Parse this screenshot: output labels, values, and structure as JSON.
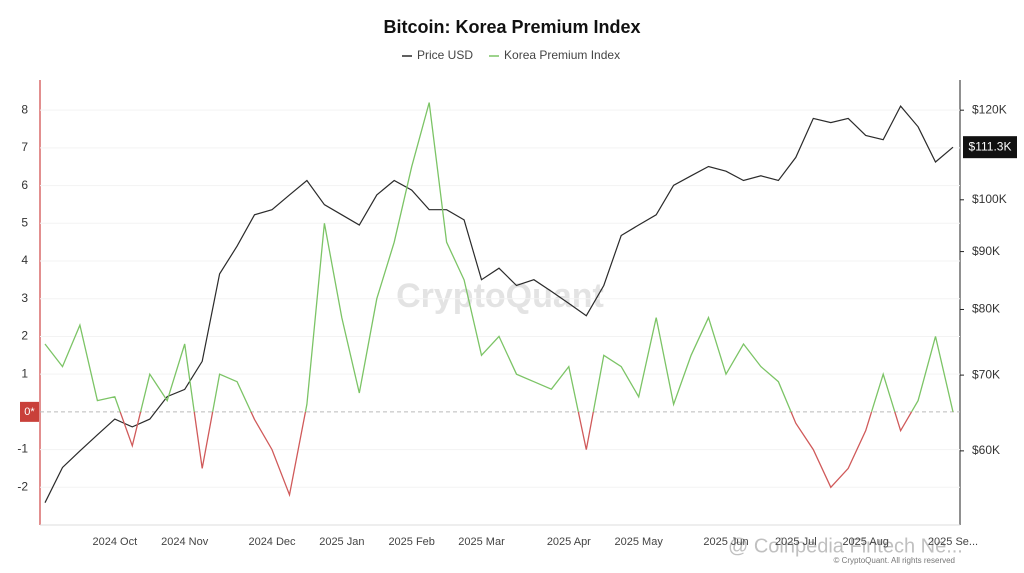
{
  "chart_data": {
    "type": "line",
    "title": "Bitcoin: Korea Premium Index",
    "categories": [
      null,
      null,
      null,
      null,
      "2024 Oct",
      null,
      null,
      null,
      "2024 Nov",
      null,
      null,
      null,
      null,
      "2024 Dec",
      null,
      null,
      null,
      "2025 Jan",
      null,
      null,
      null,
      "2025 Feb",
      null,
      null,
      null,
      "2025 Mar",
      null,
      null,
      null,
      null,
      "2025 Apr",
      null,
      null,
      null,
      "2025 May",
      null,
      null,
      null,
      null,
      "2025 Jun",
      null,
      null,
      null,
      "2025 Jul",
      null,
      null,
      null,
      "2025 Aug",
      null,
      null,
      null,
      null,
      "2025 Se..."
    ],
    "series": [
      {
        "name": "Price USD",
        "color": "#2b2b2b",
        "axis": "y2",
        "values": [
          54000,
          58000,
          60000,
          62000,
          64000,
          63000,
          64000,
          67000,
          68000,
          72000,
          86000,
          91000,
          97000,
          98000,
          101000,
          104000,
          99000,
          97000,
          95000,
          101000,
          104000,
          102000,
          98000,
          98000,
          96000,
          85000,
          87000,
          84000,
          85000,
          83000,
          81000,
          79000,
          84000,
          93000,
          95000,
          97000,
          103000,
          105000,
          107000,
          106000,
          104000,
          105000,
          104000,
          109000,
          118000,
          117000,
          118000,
          114000,
          113000,
          121000,
          116000,
          108000,
          111300
        ]
      },
      {
        "name": "Korea Premium Index",
        "color": "#7cc466",
        "negative_color": "#d05a5a",
        "values": [
          1.8,
          1.2,
          2.3,
          0.3,
          0.4,
          -0.9,
          1.0,
          0.3,
          1.8,
          -1.5,
          1.0,
          0.8,
          -0.2,
          -1.0,
          -2.2,
          0.2,
          5.0,
          2.5,
          0.5,
          3.0,
          4.5,
          6.5,
          8.2,
          4.5,
          3.5,
          1.5,
          2.0,
          1.0,
          0.8,
          0.6,
          1.2,
          -1.0,
          1.5,
          1.2,
          0.4,
          2.5,
          0.2,
          1.5,
          2.5,
          1.0,
          1.8,
          1.2,
          0.8,
          -0.3,
          -1.0,
          -2.0,
          -1.5,
          -0.5,
          1.0,
          -0.5,
          0.3,
          2.0,
          0.0
        ]
      }
    ],
    "ylim": [
      -3,
      8.8
    ],
    "yticks": [
      -2,
      -1,
      {
        "value": 0,
        "label": "0*"
      },
      1,
      2,
      3,
      4,
      5,
      6,
      7,
      8
    ],
    "y2lim": [
      51600,
      127600
    ],
    "y2log": true,
    "y2ticks": [
      {
        "value": 60000,
        "label": "$60K"
      },
      {
        "value": 70000,
        "label": "$70K"
      },
      {
        "value": 80000,
        "label": "$80K"
      },
      {
        "value": 90000,
        "label": "$90K"
      },
      {
        "value": 100000,
        "label": "$100K"
      },
      {
        "value": 120000,
        "label": "$120K"
      }
    ],
    "last_value_label": {
      "value": 111300,
      "label": "$111.3K"
    },
    "grid": true,
    "watermark": "CryptoQuant",
    "source_note": "© CryptoQuant. All rights reserved",
    "overlay_text": "@ Coinpedia Fintech Ne..."
  }
}
